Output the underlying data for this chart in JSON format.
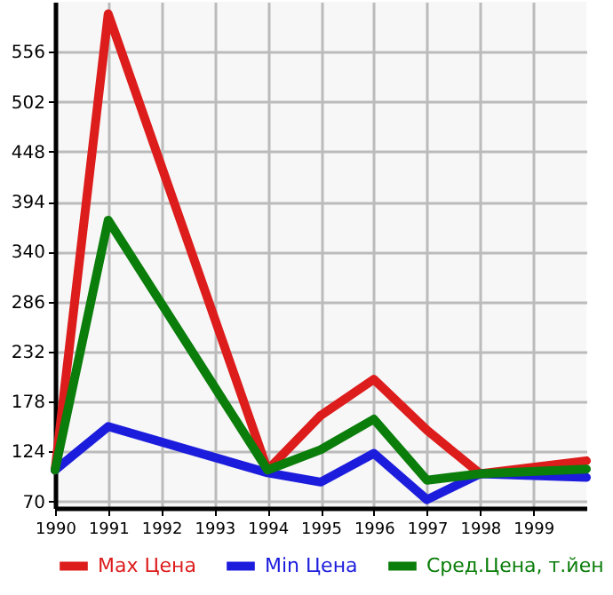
{
  "chart_data": {
    "type": "line",
    "x": [
      1990,
      1991,
      1994,
      1995,
      1996,
      1997,
      1998,
      2000
    ],
    "series": [
      {
        "name": "Max Цена",
        "color": "#dd1c1c",
        "values": [
          104,
          597,
          104,
          163,
          202,
          147,
          100,
          114
        ]
      },
      {
        "name": "Min Цена",
        "color": "#1c1cdd",
        "values": [
          104,
          151,
          101,
          91,
          122,
          72,
          100,
          96
        ]
      },
      {
        "name": "Сред.Цена, т.йен",
        "color": "#0a7d0a",
        "values": [
          104,
          374,
          104,
          126,
          159,
          93,
          100,
          105
        ]
      }
    ],
    "xlim": [
      1990,
      2000
    ],
    "xticks": [
      1990,
      1991,
      1992,
      1993,
      1994,
      1995,
      1996,
      1997,
      1998,
      1999
    ],
    "ylim": [
      63,
      610
    ],
    "yticks": [
      70,
      124,
      178,
      232,
      286,
      340,
      394,
      448,
      502,
      556
    ],
    "grid": true,
    "legend": "bottom",
    "marker": "none",
    "line_style": "solid"
  }
}
